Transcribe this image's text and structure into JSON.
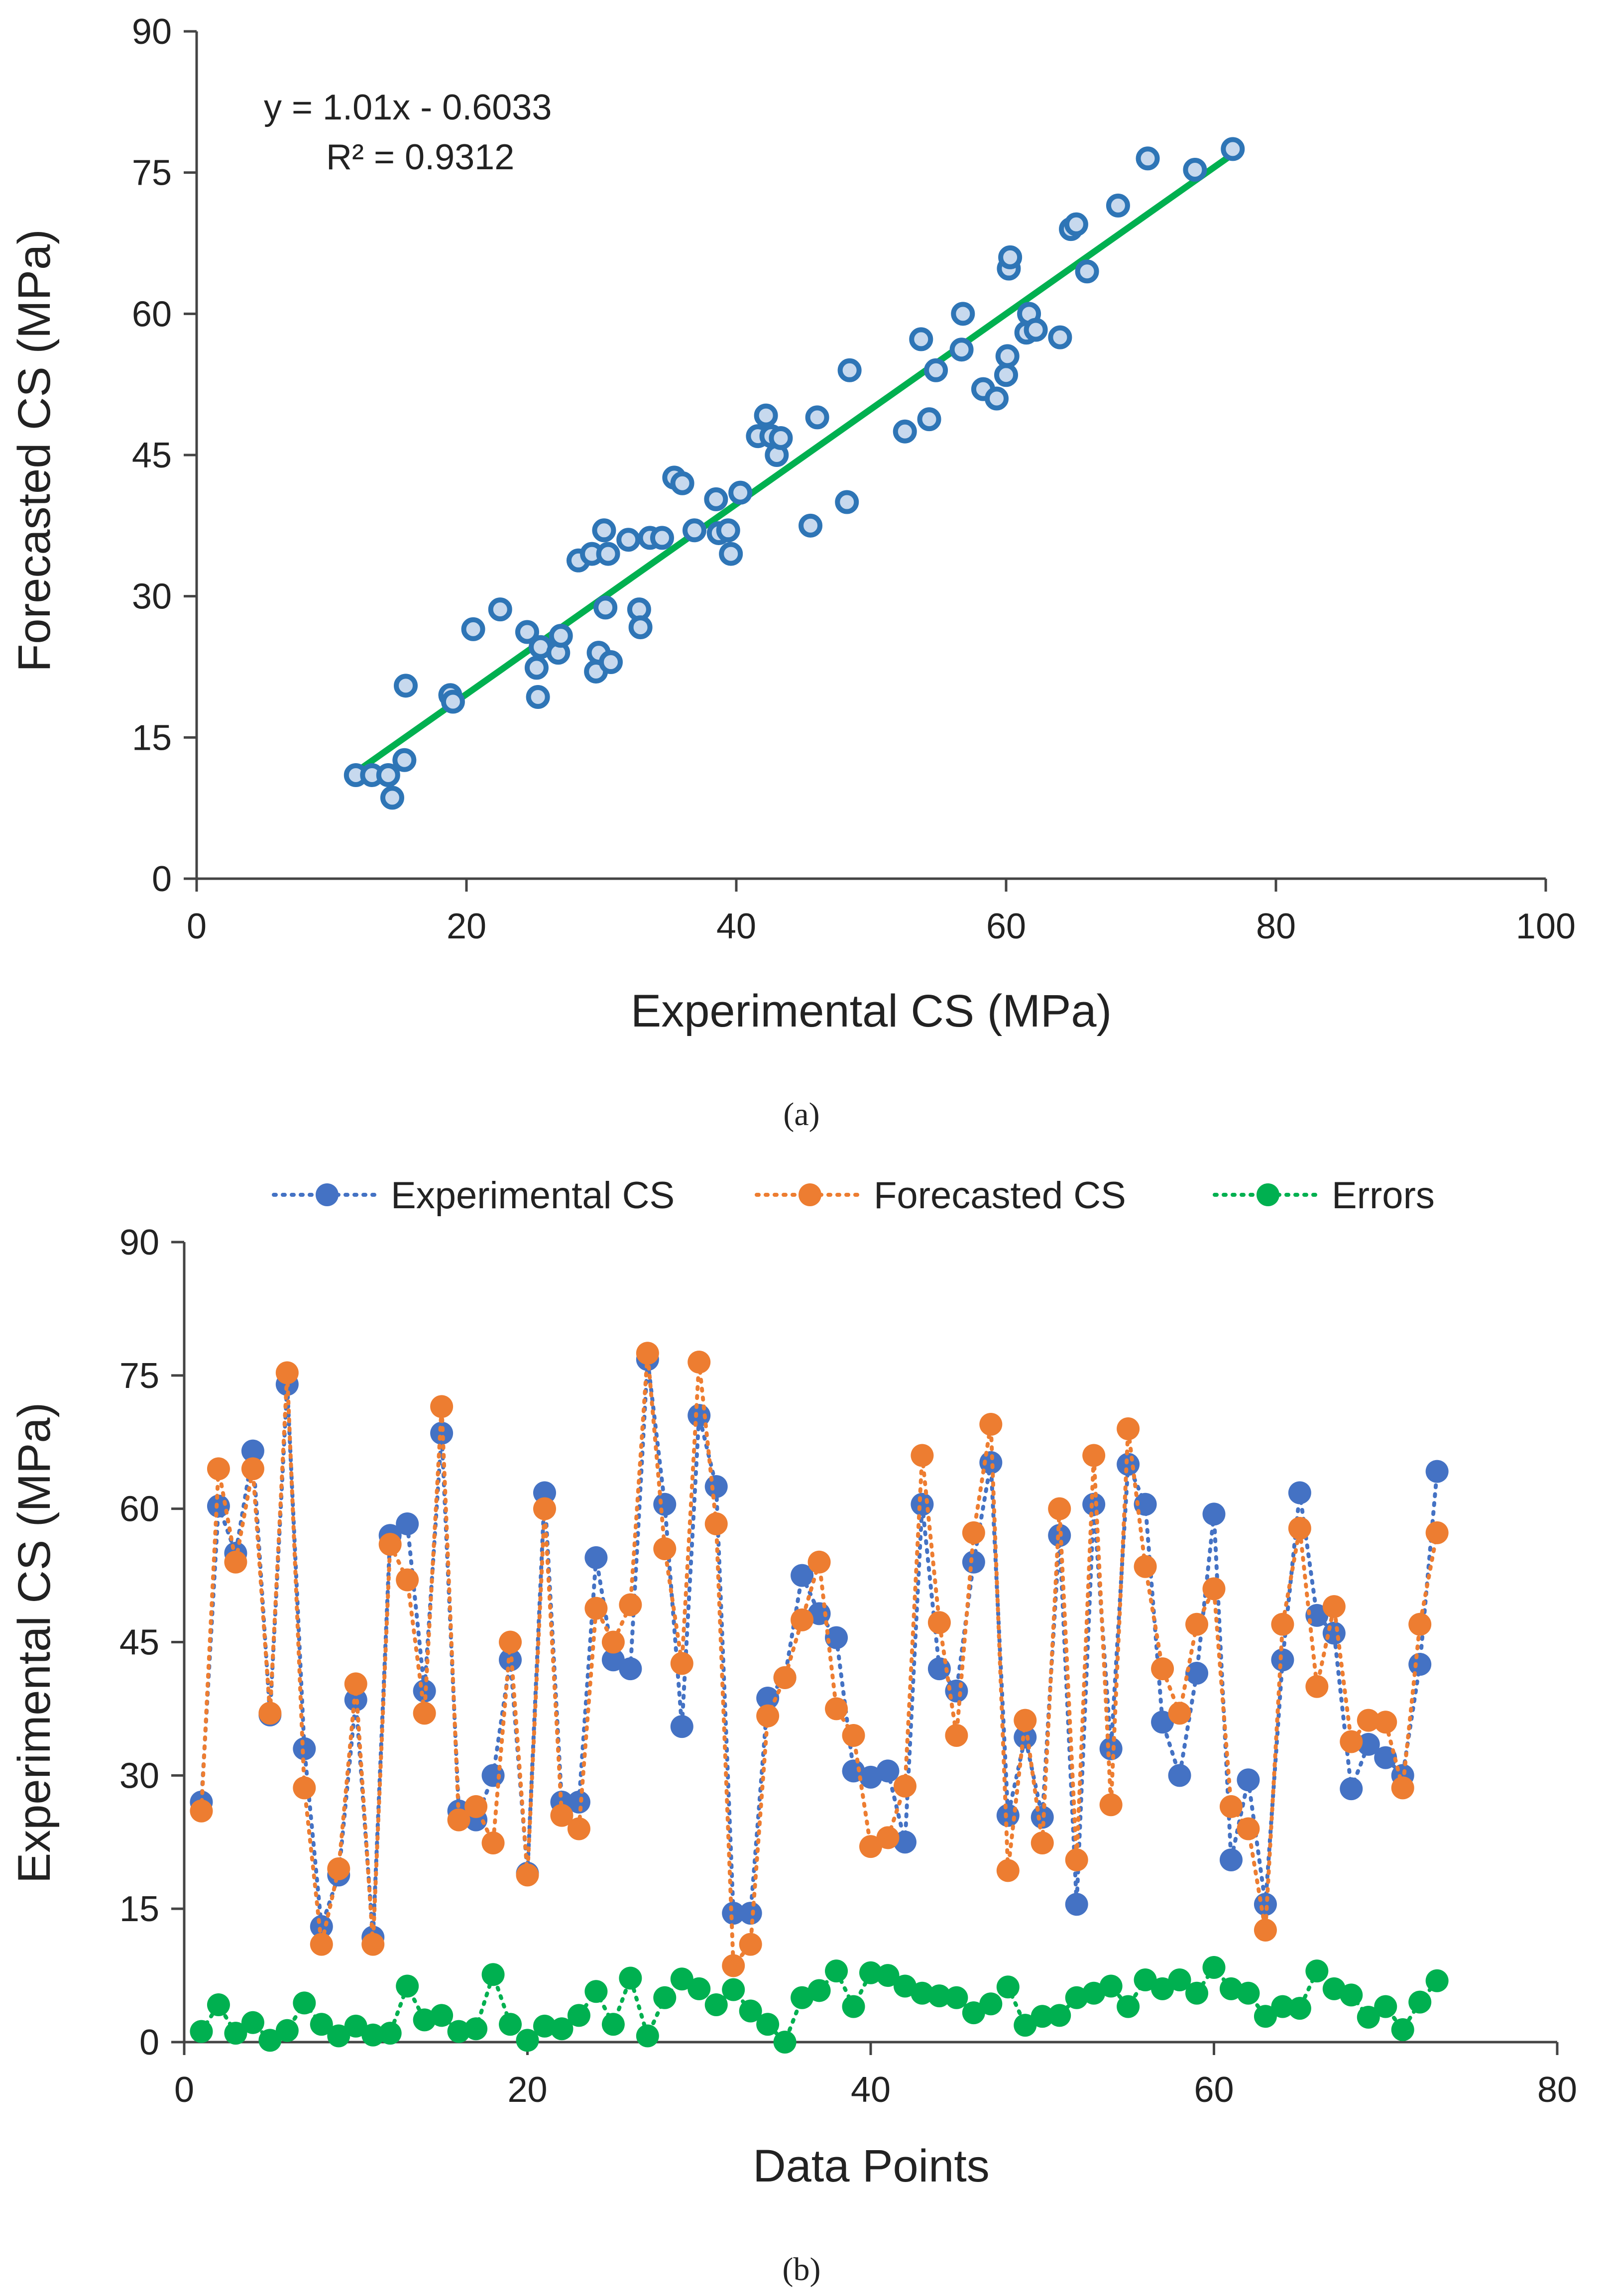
{
  "chart_data": [
    {
      "type": "scatter",
      "panel_label": "(a)",
      "equation": "y = 1.01x - 0.6033",
      "r_squared": "R² = 0.9312",
      "xlabel": "Experimental CS (MPa)",
      "ylabel": "Forecasted CS (MPa)",
      "xlim": [
        0,
        100
      ],
      "ylim": [
        0,
        90
      ],
      "xticks": [
        "0",
        "20",
        "40",
        "60",
        "80",
        "100"
      ],
      "yticks": [
        "0",
        "15",
        "30",
        "45",
        "60",
        "75",
        "90"
      ],
      "grid": false,
      "trendline": {
        "slope": 1.01,
        "intercept": -0.6033,
        "x_range": [
          11.8,
          76.8
        ],
        "color": "#00b050"
      },
      "marker_color": "#2e75b6",
      "points": [
        [
          11.8,
          11.0
        ],
        [
          13.0,
          11.0
        ],
        [
          14.2,
          11.0
        ],
        [
          14.5,
          8.6
        ],
        [
          15.4,
          12.6
        ],
        [
          15.5,
          20.5
        ],
        [
          18.8,
          19.5
        ],
        [
          19.0,
          18.8
        ],
        [
          20.5,
          26.5
        ],
        [
          22.5,
          28.6
        ],
        [
          24.5,
          26.2
        ],
        [
          25.2,
          22.4
        ],
        [
          25.3,
          19.3
        ],
        [
          25.5,
          24.6
        ],
        [
          26.8,
          24.0
        ],
        [
          27.0,
          25.8
        ],
        [
          28.3,
          33.8
        ],
        [
          29.3,
          34.5
        ],
        [
          29.6,
          22.0
        ],
        [
          29.8,
          24.0
        ],
        [
          30.2,
          37.0
        ],
        [
          30.3,
          28.8
        ],
        [
          30.5,
          34.5
        ],
        [
          30.7,
          23.0
        ],
        [
          32.0,
          36.0
        ],
        [
          32.8,
          28.6
        ],
        [
          32.9,
          26.7
        ],
        [
          33.6,
          36.2
        ],
        [
          34.5,
          36.2
        ],
        [
          35.4,
          42.6
        ],
        [
          36.0,
          42.0
        ],
        [
          36.9,
          37.0
        ],
        [
          38.5,
          40.3
        ],
        [
          38.7,
          36.7
        ],
        [
          39.4,
          37.0
        ],
        [
          39.6,
          34.5
        ],
        [
          40.3,
          41.0
        ],
        [
          41.6,
          47.0
        ],
        [
          42.2,
          49.2
        ],
        [
          42.6,
          47.0
        ],
        [
          43.0,
          45.0
        ],
        [
          43.3,
          46.8
        ],
        [
          45.5,
          37.5
        ],
        [
          46.0,
          49.0
        ],
        [
          48.2,
          40.0
        ],
        [
          48.4,
          54.0
        ],
        [
          52.5,
          47.5
        ],
        [
          53.7,
          57.3
        ],
        [
          54.3,
          48.8
        ],
        [
          54.8,
          54.0
        ],
        [
          56.7,
          56.2
        ],
        [
          56.8,
          60.0
        ],
        [
          58.3,
          52.0
        ],
        [
          59.3,
          51.0
        ],
        [
          60.0,
          53.5
        ],
        [
          60.1,
          55.5
        ],
        [
          60.2,
          64.8
        ],
        [
          60.3,
          66.0
        ],
        [
          61.5,
          58.0
        ],
        [
          61.7,
          60.0
        ],
        [
          62.2,
          58.3
        ],
        [
          64.0,
          57.5
        ],
        [
          64.8,
          69.0
        ],
        [
          65.2,
          69.5
        ],
        [
          66.0,
          64.5
        ],
        [
          68.3,
          71.5
        ],
        [
          70.5,
          76.5
        ],
        [
          74.0,
          75.3
        ],
        [
          76.8,
          77.5
        ]
      ]
    },
    {
      "type": "line",
      "panel_label": "(b)",
      "xlabel": "Data Points",
      "ylabel": "Experimental CS (MPa)",
      "xlim": [
        0,
        80
      ],
      "ylim": [
        0,
        90
      ],
      "xticks": [
        "0",
        "20",
        "40",
        "60",
        "80"
      ],
      "yticks": [
        "0",
        "15",
        "30",
        "45",
        "60",
        "75",
        "90"
      ],
      "legend_position": "top",
      "grid": false,
      "x": [
        1,
        2,
        3,
        4,
        5,
        6,
        7,
        8,
        9,
        10,
        11,
        12,
        13,
        14,
        15,
        16,
        17,
        18,
        19,
        20,
        21,
        22,
        23,
        24,
        25,
        26,
        27,
        28,
        29,
        30,
        31,
        32,
        33,
        34,
        35,
        36,
        37,
        38,
        39,
        40,
        41,
        42,
        43,
        44,
        45,
        46,
        47,
        48,
        49,
        50,
        51,
        52,
        53,
        54,
        55,
        56,
        57,
        58,
        59,
        60,
        61,
        62,
        63,
        64,
        65,
        66,
        67,
        68,
        69,
        70,
        71,
        72,
        73
      ],
      "series": [
        {
          "name": "Experimental CS",
          "color": "#4472c4",
          "values": [
            27.0,
            60.3,
            55.0,
            66.5,
            36.8,
            74.0,
            33.0,
            13.0,
            18.8,
            38.5,
            11.8,
            57.0,
            58.3,
            39.5,
            68.5,
            26.0,
            25.0,
            30.0,
            43.0,
            19.0,
            61.8,
            27.0,
            27.0,
            54.5,
            43.0,
            42.0,
            76.8,
            60.5,
            35.5,
            70.5,
            62.5,
            14.5,
            14.5,
            38.7,
            41.0,
            52.5,
            48.2,
            45.5,
            30.5,
            29.8,
            30.5,
            22.5,
            60.5,
            42.0,
            39.5,
            54.0,
            65.2,
            25.5,
            34.3,
            25.3,
            57.0,
            15.5,
            60.5,
            33.0,
            65.0,
            60.5,
            36.0,
            30.0,
            41.5,
            59.4,
            20.5,
            29.5,
            15.5,
            43.0,
            61.8,
            48.0,
            46.0,
            28.5,
            33.5,
            32.0,
            30.0,
            42.5,
            64.2
          ]
        },
        {
          "name": "Forecasted CS",
          "color": "#ed7d31",
          "values": [
            26.0,
            64.5,
            54.0,
            64.5,
            37.0,
            75.3,
            28.6,
            11.0,
            19.5,
            40.3,
            11.0,
            56.0,
            52.0,
            37.0,
            71.5,
            25.0,
            26.5,
            22.4,
            45.0,
            18.8,
            60.0,
            25.5,
            24.0,
            48.8,
            45.0,
            49.2,
            77.5,
            55.5,
            42.6,
            76.5,
            58.3,
            8.6,
            11.0,
            36.7,
            41.0,
            47.5,
            54.0,
            37.5,
            34.5,
            22.0,
            23.0,
            28.8,
            66.0,
            47.2,
            34.5,
            57.3,
            69.5,
            19.3,
            36.2,
            22.4,
            60.0,
            20.5,
            66.0,
            26.7,
            69.0,
            53.5,
            42.0,
            37.0,
            47.0,
            51.0,
            26.5,
            24.0,
            12.6,
            47.0,
            57.8,
            40.0,
            49.0,
            33.8,
            36.2,
            36.0,
            28.6,
            47.0,
            57.3
          ]
        },
        {
          "name": "Errors",
          "color": "#00b050",
          "values": [
            1.2,
            4.2,
            1.0,
            2.2,
            0.2,
            1.3,
            4.4,
            2.0,
            0.7,
            1.8,
            0.8,
            1.0,
            6.3,
            2.5,
            3.0,
            1.2,
            1.5,
            7.6,
            2.0,
            0.2,
            1.8,
            1.5,
            3.0,
            5.7,
            2.0,
            7.2,
            0.7,
            5.0,
            7.1,
            6.0,
            4.2,
            5.9,
            3.5,
            2.0,
            0.0,
            5.0,
            5.8,
            8.0,
            4.0,
            7.8,
            7.5,
            6.3,
            5.5,
            5.2,
            5.0,
            3.3,
            4.3,
            6.2,
            1.9,
            2.9,
            3.0,
            5.0,
            5.5,
            6.3,
            4.0,
            7.0,
            6.0,
            7.0,
            5.5,
            8.4,
            6.0,
            5.5,
            2.9,
            4.0,
            3.8,
            8.0,
            6.0,
            5.3,
            2.8,
            4.0,
            1.4,
            4.5,
            6.9
          ]
        }
      ]
    }
  ]
}
